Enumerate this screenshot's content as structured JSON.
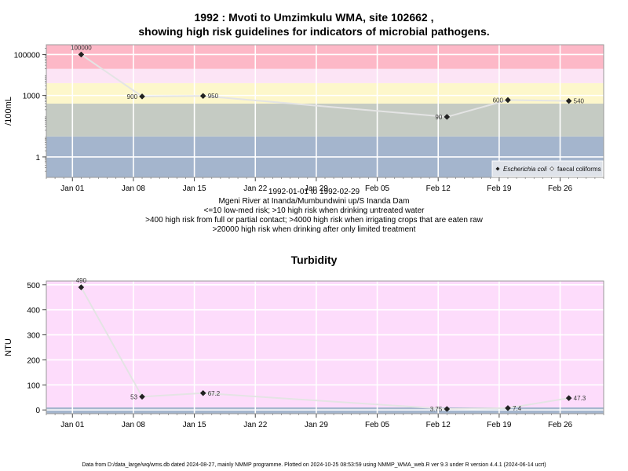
{
  "header": {
    "title_line1": "1992 : Mvoti to Umzimkulu WMA, site 102662 ,",
    "title_line2": "showing high risk guidelines for indicators of microbial pathogens."
  },
  "top_chart": {
    "captions": [
      "1992-01-01 to 1992-02-29",
      "Mgeni River at Inanda/Mumbundwini up/S Inanda Dam",
      "<=10 low-med risk; >10 high risk when drinking untreated water",
      ">400 high risk from full or partial contact; >4000 high risk when irrigating crops that are eaten raw",
      ">20000 high risk when drinking after only limited treatment"
    ]
  },
  "bottom_chart": {
    "title": "Turbidity"
  },
  "footer": {
    "text": "Data from D:/data_large/wq/wms.db dated 2024-08-27, mainly NMMP programme. Plotted on 2024-10-25 08:53:59 using NMMP_WMA_web.R ver 9.3 under R version 4.4.1 (2024-06-14 ucrt)"
  },
  "chart_data": [
    {
      "type": "scatter",
      "title": "1992 : Mvoti to Umzimkulu WMA, site 102662 , showing high risk guidelines for indicators of microbial pathogens.",
      "ylabel": "/100mL",
      "xlabel": "",
      "yscale": "log",
      "ylim": [
        0.1,
        300000
      ],
      "xlim": [
        "1991-12-29",
        "1992-03-02"
      ],
      "x_ticks": [
        "Jan 01",
        "Jan 08",
        "Jan 15",
        "Jan 22",
        "Jan 29",
        "Feb 05",
        "Feb 12",
        "Feb 19",
        "Feb 26"
      ],
      "x_tick_dates": [
        "1992-01-01",
        "1992-01-08",
        "1992-01-15",
        "1992-01-22",
        "1992-01-29",
        "1992-02-05",
        "1992-02-12",
        "1992-02-19",
        "1992-02-26"
      ],
      "y_ticks": [
        1,
        1000,
        100000
      ],
      "y_tick_labels": [
        "1",
        "1000",
        "100000"
      ],
      "grid": true,
      "legend_position": "bottom-right",
      "bands": [
        {
          "from": 0.1,
          "to": 10,
          "color": "#a4b5cd"
        },
        {
          "from": 10,
          "to": 400,
          "color": "#c5cbc3"
        },
        {
          "from": 400,
          "to": 4000,
          "color": "#fdf7cb"
        },
        {
          "from": 4000,
          "to": 20000,
          "color": "#fce4f5"
        },
        {
          "from": 20000,
          "to": 300000,
          "color": "#fdb8c7"
        }
      ],
      "series": [
        {
          "name": "Escherichia coli",
          "marker": "diamond",
          "color": "#222222",
          "points": [
            {
              "x": "1992-01-02",
              "y": 100000,
              "label": "100000"
            },
            {
              "x": "1992-01-09",
              "y": 900,
              "label": "900"
            },
            {
              "x": "1992-01-16",
              "y": 950,
              "label": "950"
            },
            {
              "x": "1992-02-13",
              "y": 90,
              "label": "90"
            },
            {
              "x": "1992-02-20",
              "y": 600,
              "label": "600"
            },
            {
              "x": "1992-02-27",
              "y": 540,
              "label": "540"
            }
          ]
        },
        {
          "name": "faecal coliforms",
          "marker": "diamond-open",
          "color": "#444444",
          "points": []
        }
      ]
    },
    {
      "type": "scatter",
      "title": "Turbidity",
      "ylabel": "NTU",
      "xlabel": "",
      "ylim": [
        -15,
        515
      ],
      "xlim": [
        "1991-12-29",
        "1992-03-02"
      ],
      "x_ticks": [
        "Jan 01",
        "Jan 08",
        "Jan 15",
        "Jan 22",
        "Jan 29",
        "Feb 05",
        "Feb 12",
        "Feb 19",
        "Feb 26"
      ],
      "x_tick_dates": [
        "1992-01-01",
        "1992-01-08",
        "1992-01-15",
        "1992-01-22",
        "1992-01-29",
        "1992-02-05",
        "1992-02-12",
        "1992-02-19",
        "1992-02-26"
      ],
      "y_ticks": [
        0,
        100,
        200,
        300,
        400,
        500
      ],
      "grid": true,
      "bands": [
        {
          "from": -15,
          "to": 10,
          "color": "#a4b5cd"
        },
        {
          "from": 10,
          "to": 515,
          "color": "#fddcfb"
        }
      ],
      "series": [
        {
          "name": "Turbidity",
          "marker": "diamond",
          "color": "#222222",
          "points": [
            {
              "x": "1992-01-02",
              "y": 490,
              "label": "490"
            },
            {
              "x": "1992-01-09",
              "y": 53,
              "label": "53"
            },
            {
              "x": "1992-01-16",
              "y": 67.2,
              "label": "67.2"
            },
            {
              "x": "1992-02-13",
              "y": 3.75,
              "label": "3.75"
            },
            {
              "x": "1992-02-20",
              "y": 7.4,
              "label": "7.4"
            },
            {
              "x": "1992-02-27",
              "y": 47.3,
              "label": "47.3"
            }
          ]
        }
      ]
    }
  ]
}
